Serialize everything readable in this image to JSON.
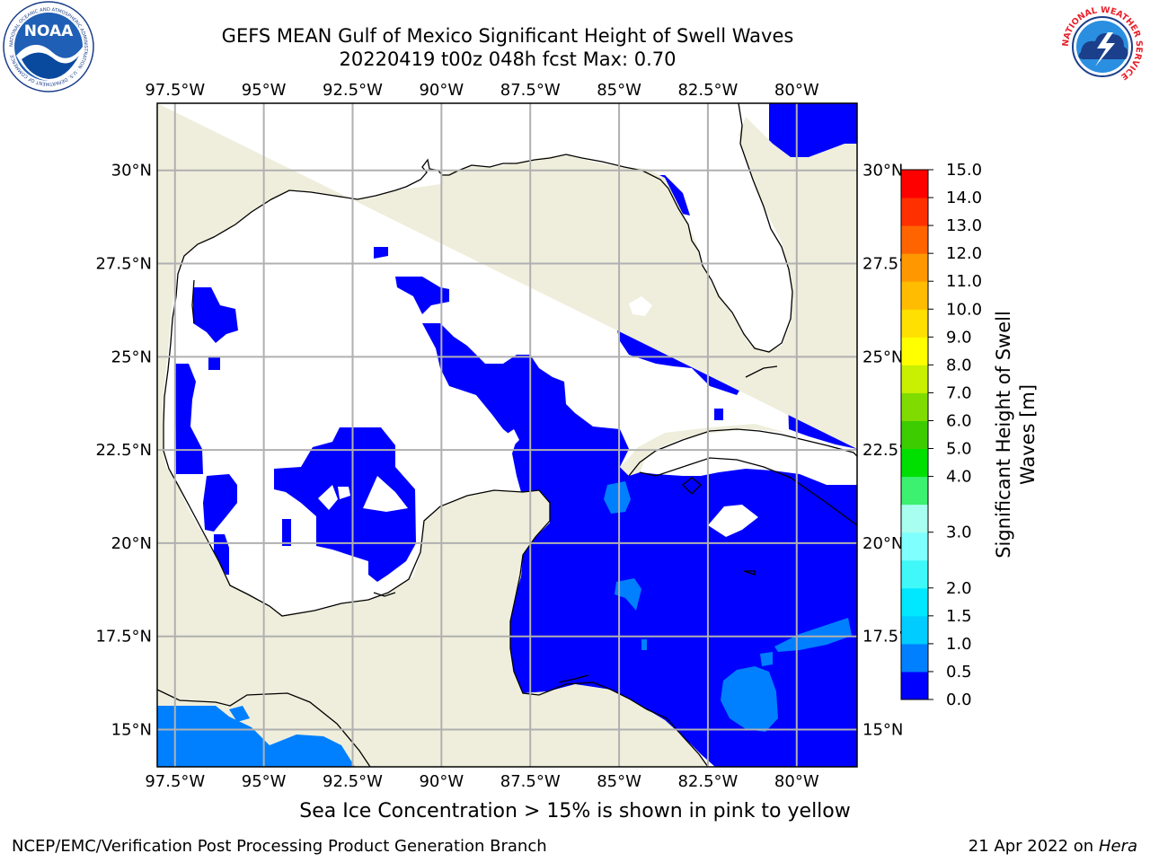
{
  "header": {
    "title_line1": "GEFS MEAN Gulf of Mexico Significant Height of Swell Waves",
    "title_line2": "20220419 t00z 048h fcst   Max: 0.70"
  },
  "logos": {
    "left": {
      "icon": "noaa-logo-icon",
      "text": "NOAA",
      "ring_text": "NATIONAL OCEANIC AND ATMOSPHERIC ADMINISTRATION · U.S. DEPARTMENT OF COMMERCE"
    },
    "right": {
      "icon": "nws-logo-icon",
      "ring_text": "NATIONAL WEATHER SERVICE"
    }
  },
  "map": {
    "lon_labels": [
      "97.5°W",
      "95°W",
      "92.5°W",
      "90°W",
      "87.5°W",
      "85°W",
      "82.5°W",
      "80°W"
    ],
    "lon_values": [
      -97.5,
      -95,
      -92.5,
      -90,
      -87.5,
      -85,
      -82.5,
      -80
    ],
    "lat_labels": [
      "30°N",
      "27.5°N",
      "25°N",
      "22.5°N",
      "20°N",
      "17.5°N",
      "15°N"
    ],
    "lat_values": [
      30,
      27.5,
      25,
      22.5,
      20,
      17.5,
      15
    ],
    "extent": {
      "lon": [
        -98,
        -78.3
      ],
      "lat": [
        14,
        31.8
      ]
    },
    "land_color": "#efeedc",
    "ocean_no_data_color": "#ffffff",
    "grid_color": "#b0b0b0"
  },
  "colorbar": {
    "label": "Significant Height of Swell Waves [m]",
    "levels": [
      0.0,
      0.5,
      1.0,
      1.5,
      2.0,
      2.5,
      3.0,
      3.5,
      4.0,
      5.0,
      6.0,
      7.0,
      8.0,
      9.0,
      10.0,
      11.0,
      12.0,
      13.0,
      14.0,
      15.0
    ],
    "tick_labels": [
      "15.0",
      "14.0",
      "13.0",
      "12.0",
      "11.0",
      "10.0",
      "9.0",
      "8.0",
      "7.0",
      "6.0",
      "5.0",
      "4.0",
      "3.0",
      "2.0",
      "1.5",
      "1.0",
      "0.5",
      "0.0"
    ],
    "colors": [
      "#0000ff",
      "#0080ff",
      "#00ccff",
      "#00e8ff",
      "#40f8f8",
      "#80ffff",
      "#a8fff0",
      "#3cf070",
      "#00e000",
      "#3ccc00",
      "#80dc00",
      "#c8f000",
      "#ffff00",
      "#ffe000",
      "#ffbc00",
      "#ff9800",
      "#ff6400",
      "#ff3000",
      "#ff0000"
    ]
  },
  "notes": {
    "seaice": "Sea Ice Concentration > 15% is shown in pink to yellow"
  },
  "footer": {
    "left": "NCEP/EMC/Verification Post Processing Product Generation Branch",
    "right_prefix": "21 Apr 2022 on ",
    "right_host": "Hera"
  }
}
